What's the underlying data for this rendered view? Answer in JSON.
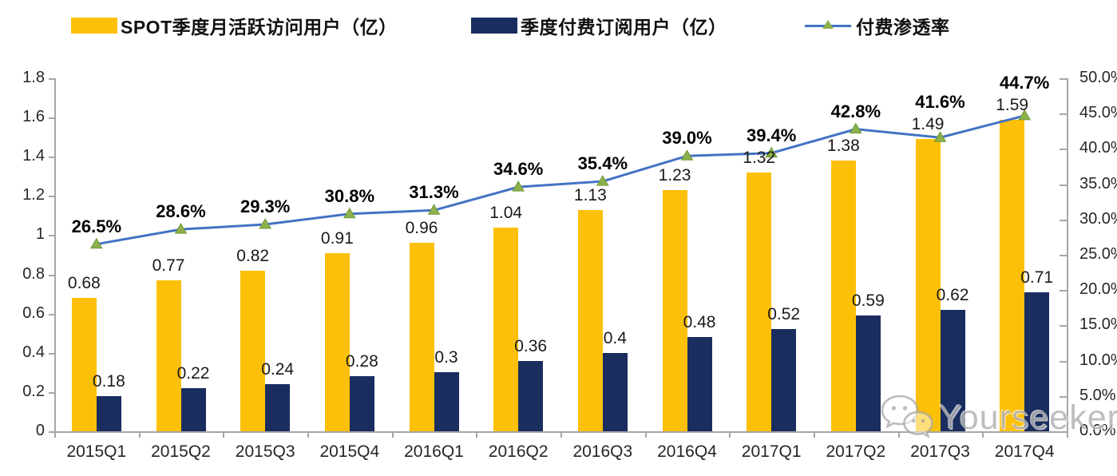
{
  "legend": {
    "items": [
      {
        "label": "SPOT季度月活跃访问用户（亿）",
        "marker": "bar-swatch",
        "color": "#FDC008"
      },
      {
        "label": "季度付费订阅用户（亿）",
        "marker": "bar-swatch",
        "color": "#1A2D5F"
      },
      {
        "label": "付费渗透率",
        "marker": "line-triangle",
        "color": "#4472C4"
      }
    ]
  },
  "axes": {
    "left": {
      "tick_labels": [
        "1.8",
        "1.6",
        "1.4",
        "1.2",
        "1",
        "0.8",
        "0.6",
        "0.4",
        "0.2",
        "0"
      ],
      "tick_values": [
        1.8,
        1.6,
        1.4,
        1.2,
        1.0,
        0.8,
        0.6,
        0.4,
        0.2,
        0
      ],
      "max": 1.8
    },
    "right": {
      "tick_labels": [
        "50.0%",
        "45.0%",
        "40.0%",
        "35.0%",
        "30.0%",
        "25.0%",
        "20.0%",
        "15.0%",
        "10.0%",
        "5.0%",
        "0.0%"
      ],
      "tick_values": [
        50,
        45,
        40,
        35,
        30,
        25,
        20,
        15,
        10,
        5,
        0
      ],
      "max": 50
    }
  },
  "chart_data": {
    "type": "bar",
    "subtype": "combo-bar-line-dual-axis",
    "title": "",
    "categories": [
      "2015Q1",
      "2015Q2",
      "2015Q3",
      "2015Q4",
      "2016Q1",
      "2016Q2",
      "2016Q3",
      "2016Q4",
      "2017Q1",
      "2017Q2",
      "2017Q3",
      "2017Q4"
    ],
    "series": [
      {
        "name": "SPOT季度月活跃访问用户（亿）",
        "type": "bar",
        "axis": "left",
        "color": "#FDC008",
        "values": [
          0.68,
          0.77,
          0.82,
          0.91,
          0.96,
          1.04,
          1.13,
          1.23,
          1.32,
          1.38,
          1.49,
          1.59
        ],
        "labels": [
          "0.68",
          "0.77",
          "0.82",
          "0.91",
          "0.96",
          "1.04",
          "1.13",
          "1.23",
          "1.32",
          "1.38",
          "1.49",
          "1.59"
        ]
      },
      {
        "name": "季度付费订阅用户（亿）",
        "type": "bar",
        "axis": "left",
        "color": "#1A2D5F",
        "values": [
          0.18,
          0.22,
          0.24,
          0.28,
          0.3,
          0.36,
          0.4,
          0.48,
          0.52,
          0.59,
          0.62,
          0.71
        ],
        "labels": [
          "0.18",
          "0.22",
          "0.24",
          "0.28",
          "0.3",
          "0.36",
          "0.4",
          "0.48",
          "0.52",
          "0.59",
          "0.62",
          "0.71"
        ]
      },
      {
        "name": "付费渗透率",
        "type": "line",
        "axis": "right",
        "color": "#4472C4",
        "marker_color": "#8DB04A",
        "values": [
          26.5,
          28.6,
          29.3,
          30.8,
          31.3,
          34.6,
          35.4,
          39.0,
          39.4,
          42.8,
          41.6,
          44.7
        ],
        "labels": [
          "26.5%",
          "28.6%",
          "29.3%",
          "30.8%",
          "31.3%",
          "34.6%",
          "35.4%",
          "39.0%",
          "39.4%",
          "42.8%",
          "41.6%",
          "44.7%"
        ]
      }
    ],
    "ylim_left": [
      0,
      1.8
    ],
    "ylim_right": [
      0,
      50
    ],
    "grid": false,
    "legend_position": "top"
  },
  "watermark": {
    "text": "Yourseeker",
    "icon": "wechat-icon"
  },
  "colors": {
    "bar_mau": "#FDC008",
    "bar_subs": "#1A2D5F",
    "line": "#4472C4",
    "line_marker": "#8DB04A",
    "axis": "#a6a6a6",
    "text": "#262626"
  }
}
